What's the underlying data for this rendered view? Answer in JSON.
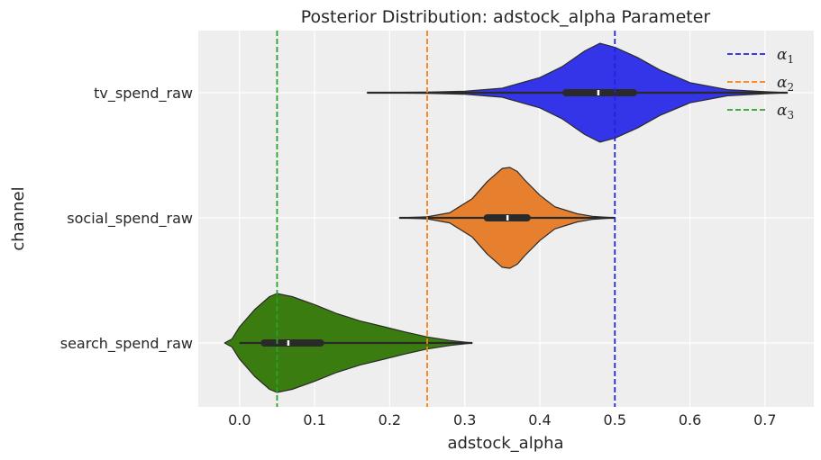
{
  "chart_data": {
    "type": "violin",
    "title": "Posterior Distribution: adstock_alpha Parameter",
    "xlabel": "adstock_alpha",
    "ylabel": "channel",
    "xlim": [
      -0.055,
      0.765
    ],
    "x_ticks": [
      0.0,
      0.1,
      0.2,
      0.3,
      0.4,
      0.5,
      0.6,
      0.7
    ],
    "x_tick_labels": [
      "0.0",
      "0.1",
      "0.2",
      "0.3",
      "0.4",
      "0.5",
      "0.6",
      "0.7"
    ],
    "grid": true,
    "legend_position": "top-right",
    "categories": [
      "tv_spend_raw",
      "social_spend_raw",
      "search_spend_raw"
    ],
    "series": [
      {
        "category": "tv_spend_raw",
        "color": "#3434e8",
        "whisker": [
          0.17,
          0.73
        ],
        "iqr": [
          0.435,
          0.525
        ],
        "median": 0.478,
        "density": [
          [
            0.17,
            0.0
          ],
          [
            0.25,
            0.01
          ],
          [
            0.3,
            0.03
          ],
          [
            0.35,
            0.09
          ],
          [
            0.4,
            0.3
          ],
          [
            0.43,
            0.52
          ],
          [
            0.46,
            0.83
          ],
          [
            0.48,
            0.98
          ],
          [
            0.5,
            0.9
          ],
          [
            0.53,
            0.7
          ],
          [
            0.56,
            0.45
          ],
          [
            0.6,
            0.2
          ],
          [
            0.65,
            0.06
          ],
          [
            0.7,
            0.02
          ],
          [
            0.73,
            0.0
          ]
        ]
      },
      {
        "category": "social_spend_raw",
        "color": "#e6802e",
        "whisker": [
          0.213,
          0.5
        ],
        "iqr": [
          0.33,
          0.383
        ],
        "median": 0.357,
        "density": [
          [
            0.213,
            0.0
          ],
          [
            0.25,
            0.02
          ],
          [
            0.28,
            0.1
          ],
          [
            0.31,
            0.38
          ],
          [
            0.33,
            0.72
          ],
          [
            0.35,
            0.98
          ],
          [
            0.36,
            1.0
          ],
          [
            0.37,
            0.92
          ],
          [
            0.38,
            0.75
          ],
          [
            0.4,
            0.45
          ],
          [
            0.42,
            0.22
          ],
          [
            0.45,
            0.08
          ],
          [
            0.47,
            0.03
          ],
          [
            0.5,
            0.0
          ]
        ]
      },
      {
        "category": "search_spend_raw",
        "color": "#3a7c0f",
        "whisker": [
          0.0,
          0.31
        ],
        "iqr": [
          0.033,
          0.108
        ],
        "median": 0.065,
        "density": [
          [
            -0.02,
            0.0
          ],
          [
            -0.01,
            0.08
          ],
          [
            0.0,
            0.32
          ],
          [
            0.02,
            0.66
          ],
          [
            0.04,
            0.92
          ],
          [
            0.05,
            0.98
          ],
          [
            0.07,
            0.92
          ],
          [
            0.1,
            0.76
          ],
          [
            0.13,
            0.58
          ],
          [
            0.16,
            0.44
          ],
          [
            0.19,
            0.33
          ],
          [
            0.22,
            0.22
          ],
          [
            0.25,
            0.12
          ],
          [
            0.28,
            0.05
          ],
          [
            0.31,
            0.0
          ]
        ]
      }
    ],
    "reference_lines": [
      {
        "name": "α",
        "sub": "1",
        "x": 0.5,
        "color": "#2222e6"
      },
      {
        "name": "α",
        "sub": "2",
        "x": 0.25,
        "color": "#ff7f0e"
      },
      {
        "name": "α",
        "sub": "3",
        "x": 0.05,
        "color": "#2ca02c"
      }
    ]
  }
}
